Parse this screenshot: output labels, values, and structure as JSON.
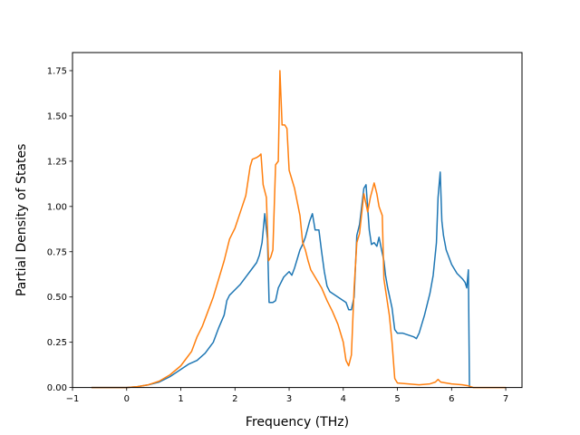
{
  "chart_data": {
    "type": "line",
    "title": "",
    "xlabel": "Frequency (THz)",
    "ylabel": "Partial Density of States",
    "xlim": [
      -1.0,
      7.3
    ],
    "ylim": [
      0.0,
      1.85
    ],
    "xticks": [
      -1,
      0,
      1,
      2,
      3,
      4,
      5,
      6,
      7
    ],
    "xtick_labels": [
      "−1",
      "0",
      "1",
      "2",
      "3",
      "4",
      "5",
      "6",
      "7"
    ],
    "yticks": [
      0.0,
      0.25,
      0.5,
      0.75,
      1.0,
      1.25,
      1.5,
      1.75
    ],
    "ytick_labels": [
      "0.00",
      "0.25",
      "0.50",
      "0.75",
      "1.00",
      "1.25",
      "1.50",
      "1.75"
    ],
    "grid": false,
    "legend": "none",
    "series": [
      {
        "color": "#1f77b4",
        "points": [
          [
            -0.65,
            0.0
          ],
          [
            0.0,
            0.0
          ],
          [
            0.2,
            0.005
          ],
          [
            0.4,
            0.015
          ],
          [
            0.6,
            0.03
          ],
          [
            0.8,
            0.06
          ],
          [
            1.0,
            0.1
          ],
          [
            1.15,
            0.13
          ],
          [
            1.3,
            0.15
          ],
          [
            1.45,
            0.19
          ],
          [
            1.6,
            0.25
          ],
          [
            1.7,
            0.33
          ],
          [
            1.8,
            0.4
          ],
          [
            1.85,
            0.48
          ],
          [
            1.9,
            0.51
          ],
          [
            2.0,
            0.54
          ],
          [
            2.1,
            0.57
          ],
          [
            2.2,
            0.61
          ],
          [
            2.3,
            0.65
          ],
          [
            2.4,
            0.69
          ],
          [
            2.45,
            0.73
          ],
          [
            2.5,
            0.8
          ],
          [
            2.55,
            0.96
          ],
          [
            2.6,
            0.82
          ],
          [
            2.63,
            0.47
          ],
          [
            2.7,
            0.47
          ],
          [
            2.75,
            0.48
          ],
          [
            2.8,
            0.55
          ],
          [
            2.9,
            0.61
          ],
          [
            3.0,
            0.64
          ],
          [
            3.05,
            0.62
          ],
          [
            3.1,
            0.66
          ],
          [
            3.2,
            0.76
          ],
          [
            3.25,
            0.79
          ],
          [
            3.3,
            0.83
          ],
          [
            3.38,
            0.92
          ],
          [
            3.43,
            0.96
          ],
          [
            3.48,
            0.87
          ],
          [
            3.55,
            0.87
          ],
          [
            3.6,
            0.75
          ],
          [
            3.65,
            0.64
          ],
          [
            3.7,
            0.56
          ],
          [
            3.75,
            0.53
          ],
          [
            3.85,
            0.51
          ],
          [
            3.95,
            0.49
          ],
          [
            4.05,
            0.47
          ],
          [
            4.1,
            0.43
          ],
          [
            4.15,
            0.43
          ],
          [
            4.2,
            0.5
          ],
          [
            4.25,
            0.84
          ],
          [
            4.3,
            0.9
          ],
          [
            4.38,
            1.1
          ],
          [
            4.42,
            1.12
          ],
          [
            4.48,
            0.87
          ],
          [
            4.52,
            0.79
          ],
          [
            4.57,
            0.8
          ],
          [
            4.62,
            0.78
          ],
          [
            4.66,
            0.83
          ],
          [
            4.7,
            0.77
          ],
          [
            4.75,
            0.7
          ],
          [
            4.78,
            0.62
          ],
          [
            4.82,
            0.55
          ],
          [
            4.9,
            0.44
          ],
          [
            4.95,
            0.32
          ],
          [
            5.0,
            0.3
          ],
          [
            5.1,
            0.3
          ],
          [
            5.2,
            0.29
          ],
          [
            5.3,
            0.28
          ],
          [
            5.35,
            0.27
          ],
          [
            5.4,
            0.3
          ],
          [
            5.5,
            0.4
          ],
          [
            5.6,
            0.52
          ],
          [
            5.66,
            0.62
          ],
          [
            5.72,
            0.8
          ],
          [
            5.75,
            1.05
          ],
          [
            5.79,
            1.19
          ],
          [
            5.82,
            0.92
          ],
          [
            5.85,
            0.84
          ],
          [
            5.9,
            0.76
          ],
          [
            6.0,
            0.68
          ],
          [
            6.1,
            0.63
          ],
          [
            6.2,
            0.6
          ],
          [
            6.25,
            0.58
          ],
          [
            6.28,
            0.55
          ],
          [
            6.31,
            0.65
          ],
          [
            6.33,
            0.0
          ]
        ]
      },
      {
        "color": "#ff7f0e",
        "points": [
          [
            -0.65,
            0.0
          ],
          [
            0.0,
            0.0
          ],
          [
            0.2,
            0.005
          ],
          [
            0.4,
            0.015
          ],
          [
            0.6,
            0.035
          ],
          [
            0.8,
            0.07
          ],
          [
            1.0,
            0.12
          ],
          [
            1.1,
            0.16
          ],
          [
            1.2,
            0.2
          ],
          [
            1.3,
            0.28
          ],
          [
            1.4,
            0.34
          ],
          [
            1.5,
            0.42
          ],
          [
            1.6,
            0.5
          ],
          [
            1.7,
            0.6
          ],
          [
            1.8,
            0.7
          ],
          [
            1.9,
            0.82
          ],
          [
            2.0,
            0.88
          ],
          [
            2.1,
            0.97
          ],
          [
            2.2,
            1.06
          ],
          [
            2.28,
            1.22
          ],
          [
            2.32,
            1.26
          ],
          [
            2.4,
            1.27
          ],
          [
            2.45,
            1.28
          ],
          [
            2.48,
            1.29
          ],
          [
            2.52,
            1.12
          ],
          [
            2.58,
            1.05
          ],
          [
            2.62,
            0.7
          ],
          [
            2.66,
            0.72
          ],
          [
            2.7,
            0.76
          ],
          [
            2.75,
            1.23
          ],
          [
            2.8,
            1.25
          ],
          [
            2.83,
            1.75
          ],
          [
            2.87,
            1.45
          ],
          [
            2.92,
            1.45
          ],
          [
            2.96,
            1.43
          ],
          [
            3.0,
            1.2
          ],
          [
            3.1,
            1.1
          ],
          [
            3.2,
            0.95
          ],
          [
            3.25,
            0.8
          ],
          [
            3.3,
            0.76
          ],
          [
            3.35,
            0.7
          ],
          [
            3.4,
            0.65
          ],
          [
            3.5,
            0.6
          ],
          [
            3.6,
            0.55
          ],
          [
            3.7,
            0.48
          ],
          [
            3.8,
            0.42
          ],
          [
            3.9,
            0.35
          ],
          [
            4.0,
            0.25
          ],
          [
            4.05,
            0.15
          ],
          [
            4.1,
            0.12
          ],
          [
            4.15,
            0.18
          ],
          [
            4.2,
            0.55
          ],
          [
            4.25,
            0.8
          ],
          [
            4.3,
            0.85
          ],
          [
            4.38,
            1.07
          ],
          [
            4.45,
            0.97
          ],
          [
            4.5,
            1.05
          ],
          [
            4.57,
            1.13
          ],
          [
            4.62,
            1.07
          ],
          [
            4.66,
            1.0
          ],
          [
            4.72,
            0.95
          ],
          [
            4.75,
            0.6
          ],
          [
            4.8,
            0.5
          ],
          [
            4.85,
            0.4
          ],
          [
            4.9,
            0.25
          ],
          [
            4.95,
            0.05
          ],
          [
            5.0,
            0.025
          ],
          [
            5.2,
            0.02
          ],
          [
            5.4,
            0.015
          ],
          [
            5.6,
            0.02
          ],
          [
            5.7,
            0.03
          ],
          [
            5.75,
            0.045
          ],
          [
            5.8,
            0.03
          ],
          [
            5.9,
            0.025
          ],
          [
            6.0,
            0.02
          ],
          [
            6.2,
            0.015
          ],
          [
            6.3,
            0.01
          ],
          [
            6.4,
            0.0
          ],
          [
            7.0,
            0.0
          ]
        ]
      }
    ]
  }
}
